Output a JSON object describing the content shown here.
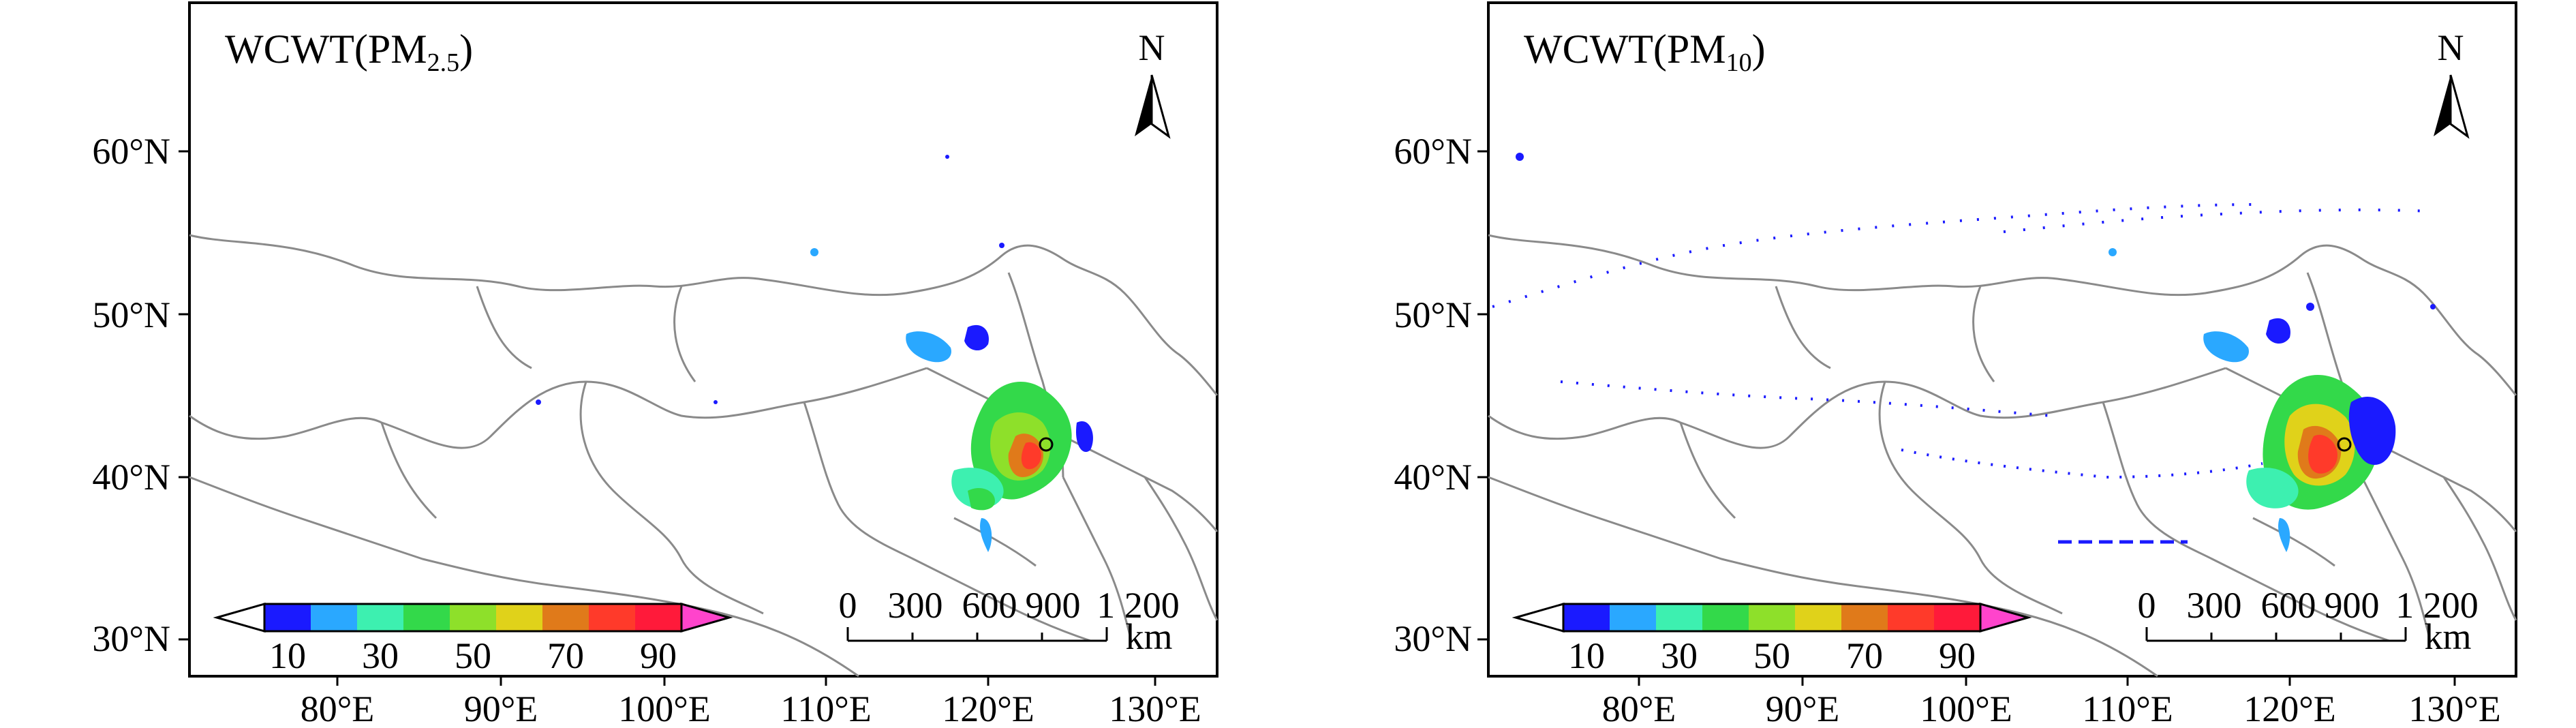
{
  "panels": [
    {
      "title": "WCWT(PM",
      "title_sub": "2.5",
      "title_close": ")",
      "species": "pm25"
    },
    {
      "title": "WCWT(PM",
      "title_sub": "10",
      "title_close": ")",
      "species": "pm10"
    }
  ],
  "north_label": "N",
  "lat_ticks": [
    "60°N",
    "50°N",
    "40°N",
    "30°N"
  ],
  "lon_ticks": [
    "80°E",
    "90°E",
    "100°E",
    "110°E",
    "120°E",
    "130°E"
  ],
  "colorbar": {
    "labels": [
      "10",
      "30",
      "50",
      "70",
      "90"
    ],
    "colors": [
      "#1a1aff",
      "#2aa8ff",
      "#3df0b0",
      "#33d94a",
      "#8ee02a",
      "#e0d21a",
      "#e07a1a",
      "#ff3a2a",
      "#ff1a3a",
      "#ff44cc"
    ]
  },
  "scalebar": {
    "labels": [
      "0",
      "300",
      "600",
      "900",
      "1 200"
    ],
    "unit": "km"
  }
}
